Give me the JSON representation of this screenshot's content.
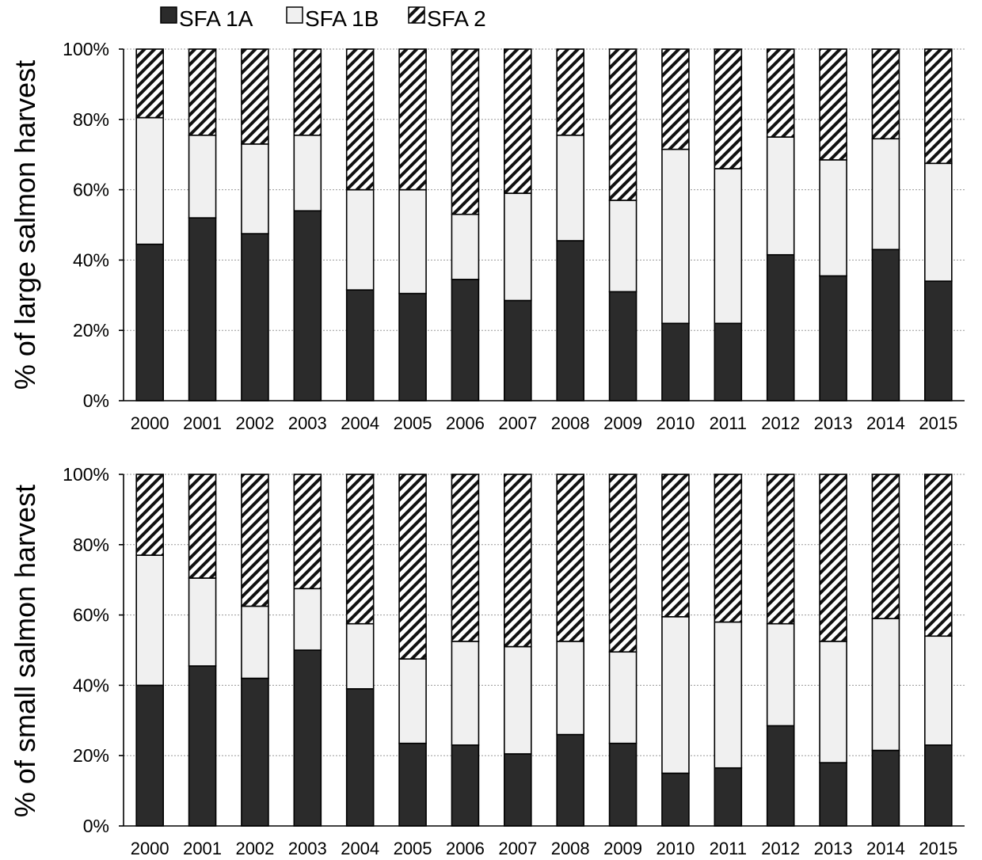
{
  "colors": {
    "sfa_1a": "#2b2b2b",
    "sfa_1b": "#f0f0f0",
    "sfa_2": "hatched",
    "grid": "#9a9a9a"
  },
  "legend": {
    "items": [
      {
        "label": "SFA 1A",
        "pattern": "solid-dark"
      },
      {
        "label": "SFA 1B",
        "pattern": "solid-light"
      },
      {
        "label": "SFA 2",
        "pattern": "diagonal-hatch"
      }
    ],
    "placement": "top"
  },
  "chart_data": [
    {
      "type": "bar",
      "stacked": true,
      "percent": true,
      "ylabel": "% of large salmon harvest",
      "xlabel": "",
      "ylim": [
        0,
        100
      ],
      "yticks": [
        "0%",
        "20%",
        "40%",
        "60%",
        "80%",
        "100%"
      ],
      "grid": "horizontal dotted",
      "categories": [
        "2000",
        "2001",
        "2002",
        "2003",
        "2004",
        "2005",
        "2006",
        "2007",
        "2008",
        "2009",
        "2010",
        "2011",
        "2012",
        "2013",
        "2014",
        "2015"
      ],
      "series": [
        {
          "name": "SFA 1A",
          "values": [
            44.5,
            52,
            47.5,
            54,
            31.5,
            30.5,
            34.5,
            28.5,
            45.5,
            31,
            22,
            22,
            41.5,
            35.5,
            43,
            34
          ]
        },
        {
          "name": "SFA 1B",
          "values": [
            36,
            23.5,
            25.5,
            21.5,
            28.5,
            29.5,
            18.5,
            30.5,
            30,
            26,
            49.5,
            44,
            33.5,
            33,
            31.5,
            33.5
          ]
        },
        {
          "name": "SFA 2",
          "values": [
            19.5,
            24.5,
            27,
            24.5,
            40,
            40,
            47,
            41,
            24.5,
            43,
            28.5,
            34,
            25,
            31.5,
            25.5,
            32.5
          ]
        }
      ]
    },
    {
      "type": "bar",
      "stacked": true,
      "percent": true,
      "ylabel": "% of small salmon harvest",
      "xlabel": "",
      "ylim": [
        0,
        100
      ],
      "yticks": [
        "0%",
        "20%",
        "40%",
        "60%",
        "80%",
        "100%"
      ],
      "grid": "horizontal dotted",
      "categories": [
        "2000",
        "2001",
        "2002",
        "2003",
        "2004",
        "2005",
        "2006",
        "2007",
        "2008",
        "2009",
        "2010",
        "2011",
        "2012",
        "2013",
        "2014",
        "2015"
      ],
      "series": [
        {
          "name": "SFA 1A",
          "values": [
            40,
            45.5,
            42,
            50,
            39,
            23.5,
            23,
            20.5,
            26,
            23.5,
            15,
            16.5,
            28.5,
            18,
            21.5,
            23
          ]
        },
        {
          "name": "SFA 1B",
          "values": [
            37,
            25,
            20.5,
            17.5,
            18.5,
            24,
            29.5,
            30.5,
            26.5,
            26,
            44.5,
            41.5,
            29,
            34.5,
            37.5,
            31
          ]
        },
        {
          "name": "SFA 2",
          "values": [
            23,
            29.5,
            37.5,
            32.5,
            42.5,
            52.5,
            47.5,
            49,
            47.5,
            50.5,
            40.5,
            42,
            42.5,
            47.5,
            41,
            46
          ]
        }
      ]
    }
  ]
}
